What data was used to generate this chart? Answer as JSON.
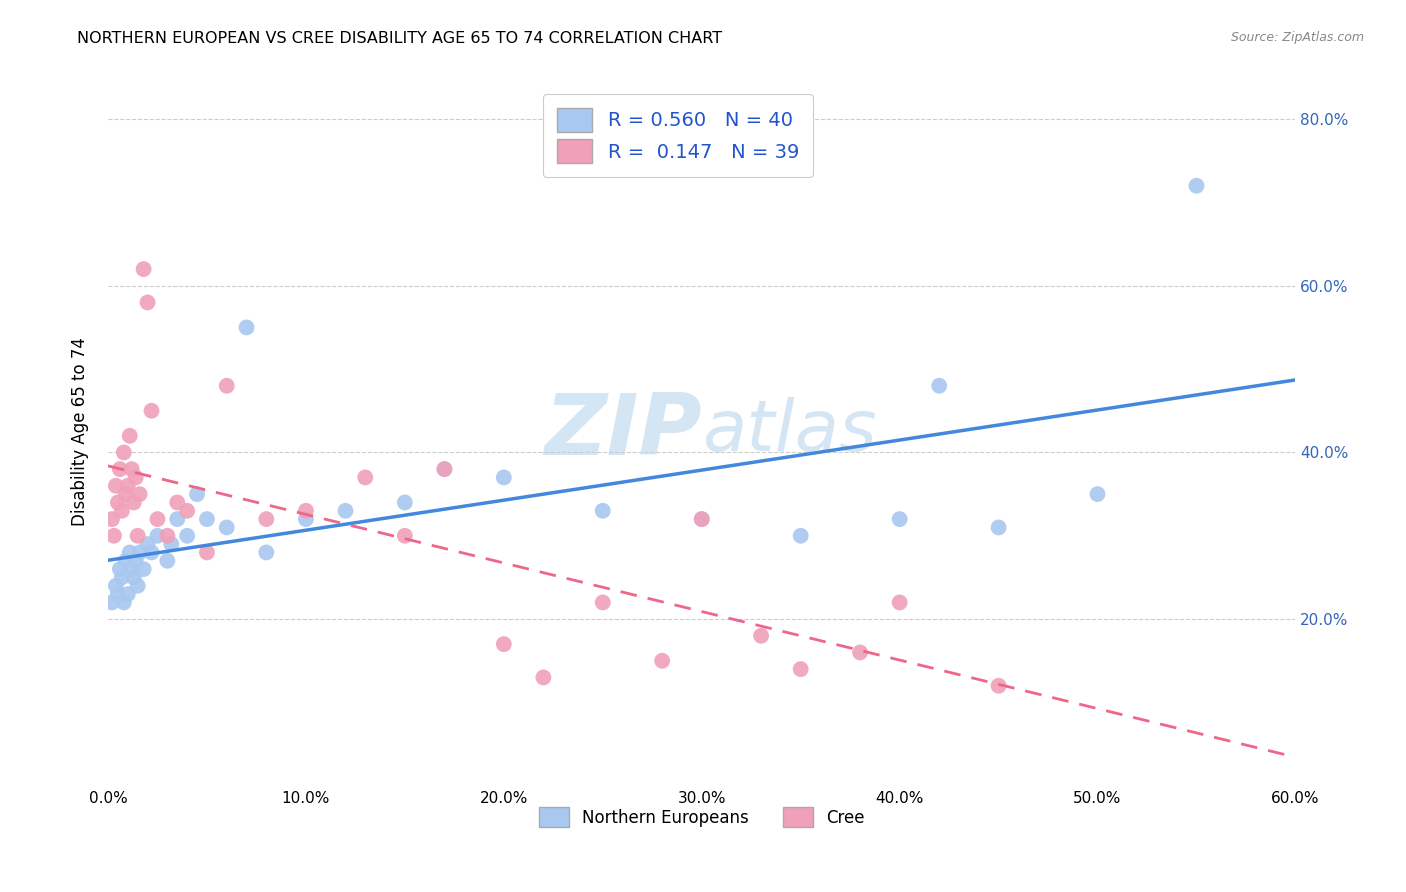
{
  "title": "NORTHERN EUROPEAN VS CREE DISABILITY AGE 65 TO 74 CORRELATION CHART",
  "source": "Source: ZipAtlas.com",
  "ylabel": "Disability Age 65 to 74",
  "xlim": [
    0.0,
    0.6
  ],
  "ylim": [
    0.0,
    0.85
  ],
  "watermark_zip": "ZIP",
  "watermark_atlas": "atlas",
  "legend1_R": "0.560",
  "legend1_N": "40",
  "legend2_R": "0.147",
  "legend2_N": "39",
  "blue_color": "#A8C8F0",
  "pink_color": "#F0A0B8",
  "blue_line_color": "#4488DD",
  "pink_line_color": "#EE6688",
  "northern_europeans_x": [
    0.002,
    0.004,
    0.005,
    0.006,
    0.007,
    0.008,
    0.009,
    0.01,
    0.011,
    0.012,
    0.013,
    0.014,
    0.015,
    0.016,
    0.018,
    0.02,
    0.022,
    0.025,
    0.03,
    0.032,
    0.035,
    0.04,
    0.045,
    0.05,
    0.06,
    0.07,
    0.08,
    0.1,
    0.12,
    0.15,
    0.17,
    0.2,
    0.25,
    0.3,
    0.35,
    0.4,
    0.42,
    0.45,
    0.5,
    0.55
  ],
  "northern_europeans_y": [
    0.22,
    0.24,
    0.23,
    0.26,
    0.25,
    0.22,
    0.27,
    0.23,
    0.28,
    0.26,
    0.25,
    0.27,
    0.24,
    0.28,
    0.26,
    0.29,
    0.28,
    0.3,
    0.27,
    0.29,
    0.32,
    0.3,
    0.35,
    0.32,
    0.31,
    0.55,
    0.28,
    0.32,
    0.33,
    0.34,
    0.38,
    0.37,
    0.33,
    0.32,
    0.3,
    0.32,
    0.48,
    0.31,
    0.35,
    0.72
  ],
  "cree_x": [
    0.002,
    0.003,
    0.004,
    0.005,
    0.006,
    0.007,
    0.008,
    0.009,
    0.01,
    0.011,
    0.012,
    0.013,
    0.014,
    0.015,
    0.016,
    0.018,
    0.02,
    0.022,
    0.025,
    0.03,
    0.035,
    0.04,
    0.05,
    0.06,
    0.08,
    0.1,
    0.13,
    0.15,
    0.17,
    0.2,
    0.22,
    0.25,
    0.28,
    0.3,
    0.33,
    0.35,
    0.38,
    0.4,
    0.45
  ],
  "cree_y": [
    0.32,
    0.3,
    0.36,
    0.34,
    0.38,
    0.33,
    0.4,
    0.35,
    0.36,
    0.42,
    0.38,
    0.34,
    0.37,
    0.3,
    0.35,
    0.62,
    0.58,
    0.45,
    0.32,
    0.3,
    0.34,
    0.33,
    0.28,
    0.48,
    0.32,
    0.33,
    0.37,
    0.3,
    0.38,
    0.17,
    0.13,
    0.22,
    0.15,
    0.32,
    0.18,
    0.14,
    0.16,
    0.22,
    0.12
  ],
  "grid_color": "#CCCCCC",
  "background_color": "#FFFFFF"
}
